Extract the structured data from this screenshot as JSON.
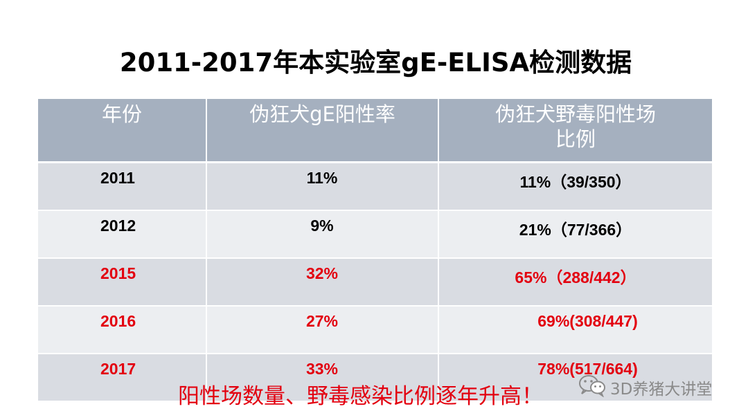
{
  "title": "2011-2017年本实验室gE-ELISA检测数据",
  "table": {
    "headers": [
      "年份",
      "伪狂犬gE阳性率",
      "伪狂犬野毒阳性场\n比例"
    ],
    "rows": [
      {
        "year": "2011",
        "rate": "11%",
        "ratio": "11%（39/350）",
        "highlight": false
      },
      {
        "year": "2012",
        "rate": "9%",
        "ratio": "21%（77/366）",
        "highlight": false
      },
      {
        "year": "2015",
        "rate": "32%",
        "ratio": "65%（288/442）",
        "highlight": true
      },
      {
        "year": "2016",
        "rate": "27%",
        "ratio": "69%(308/447)",
        "highlight": true
      },
      {
        "year": "2017",
        "rate": "33%",
        "ratio": "78%(517/664)",
        "highlight": true
      }
    ]
  },
  "footer": "阳性场数量、野毒感染比例逐年升高！",
  "watermark": "3D养猪大讲堂",
  "colors": {
    "header_bg": "#a5b0bf",
    "row_odd": "#d9dce2",
    "row_even": "#eceef1",
    "highlight_text": "#e3000f",
    "watermark": "#8a8a8a"
  }
}
